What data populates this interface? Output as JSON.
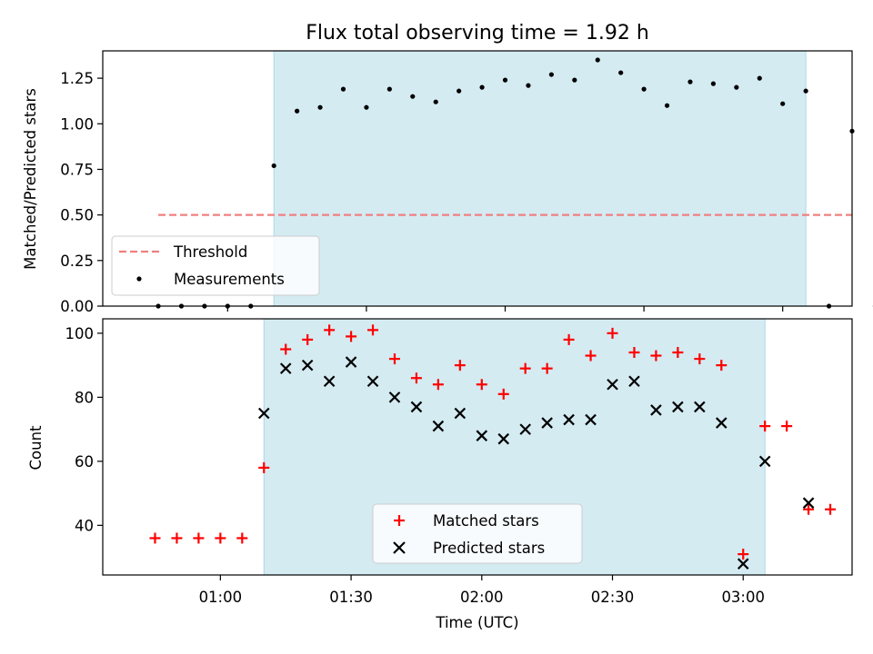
{
  "chart_data": [
    {
      "type": "scatter",
      "title": "Flux total observing time = 1.92 h",
      "xlabel": "",
      "ylabel": "Matched/Predicted stars",
      "xlim_minutes": [
        33,
        195
      ],
      "ylim": [
        0,
        1.4
      ],
      "yticks": [
        0.0,
        0.25,
        0.5,
        0.75,
        1.0,
        1.25
      ],
      "ytick_labels": [
        "0.00",
        "0.25",
        "0.50",
        "0.75",
        "1.00",
        "1.25"
      ],
      "xticks_minutes": [
        60,
        90,
        120,
        150,
        180
      ],
      "shaded_region_minutes": [
        70,
        185
      ],
      "shade_color": "#add8e6",
      "threshold": {
        "name": "Threshold",
        "value": 0.5,
        "x_range_minutes": [
          45,
          200
        ],
        "color": "#f08080"
      },
      "series": [
        {
          "name": "Measurements",
          "color": "#000000",
          "x_minutes": [
            45,
            50,
            55,
            60,
            65,
            70,
            75,
            80,
            85,
            90,
            95,
            100,
            105,
            110,
            115,
            120,
            125,
            130,
            135,
            140,
            145,
            150,
            155,
            160,
            165,
            170,
            175,
            180,
            185,
            190,
            195,
            200
          ],
          "values": [
            0,
            0,
            0,
            0,
            0,
            0.77,
            1.07,
            1.09,
            1.19,
            1.09,
            1.19,
            1.15,
            1.12,
            1.18,
            1.2,
            1.24,
            1.21,
            1.27,
            1.24,
            1.35,
            1.28,
            1.19,
            1.1,
            1.23,
            1.22,
            1.2,
            1.25,
            1.11,
            1.18,
            0,
            0.96,
            0
          ]
        }
      ],
      "legend_position": "lower-left"
    },
    {
      "type": "scatter",
      "title": "",
      "xlabel": "Time (UTC)",
      "ylabel": "Count",
      "xlim_minutes": [
        33,
        205
      ],
      "ylim": [
        24.5,
        104.5
      ],
      "yticks": [
        40,
        60,
        80,
        100
      ],
      "ytick_labels": [
        "40",
        "60",
        "80",
        "100"
      ],
      "xticks_minutes": [
        60,
        90,
        120,
        150,
        180
      ],
      "xtick_labels": [
        "01:00",
        "01:30",
        "02:00",
        "02:30",
        "03:00"
      ],
      "shaded_region_minutes": [
        70,
        185
      ],
      "shade_color": "#add8e6",
      "series": [
        {
          "name": "Matched stars",
          "marker": "+",
          "color": "#ff0000",
          "x_minutes": [
            45,
            50,
            55,
            60,
            65,
            70,
            75,
            80,
            85,
            90,
            95,
            100,
            105,
            110,
            115,
            120,
            125,
            130,
            135,
            140,
            145,
            150,
            155,
            160,
            165,
            170,
            175,
            180,
            185,
            190,
            195,
            200
          ],
          "values": [
            36,
            36,
            36,
            36,
            36,
            58,
            95,
            98,
            101,
            99,
            101,
            92,
            86,
            84,
            90,
            84,
            81,
            89,
            89,
            98,
            93,
            100,
            94,
            93,
            94,
            92,
            90,
            31,
            71,
            71,
            45,
            45
          ]
        },
        {
          "name": "Predicted stars",
          "marker": "x",
          "color": "#000000",
          "x_minutes": [
            70,
            75,
            80,
            85,
            90,
            95,
            100,
            105,
            110,
            115,
            120,
            125,
            130,
            135,
            140,
            145,
            150,
            155,
            160,
            165,
            170,
            175,
            180,
            185,
            195
          ],
          "values": [
            75,
            89,
            90,
            85,
            91,
            85,
            80,
            77,
            71,
            75,
            68,
            67,
            70,
            72,
            73,
            73,
            84,
            85,
            76,
            77,
            77,
            72,
            28,
            60,
            47
          ]
        }
      ],
      "legend_position": "lower-center"
    }
  ]
}
